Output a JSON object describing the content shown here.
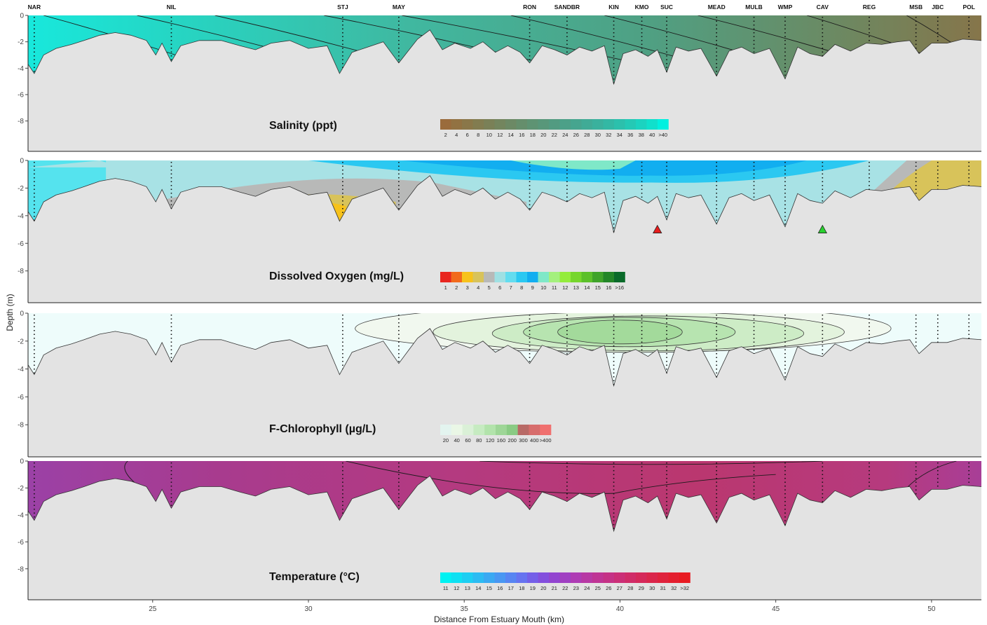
{
  "chart_data": {
    "type": "contour-section",
    "xlabel": "Distance From Estuary Mouth (km)",
    "ylabel": "Depth (m)",
    "xlim": [
      21,
      51.6
    ],
    "ylim": [
      -10,
      0
    ],
    "x_ticks": [
      "25",
      "30",
      "35",
      "40",
      "45",
      "50"
    ],
    "y_ticks": [
      "0",
      "-2",
      "-4",
      "-6",
      "-8"
    ],
    "stations": [
      {
        "name": "NAR",
        "km": 21.2
      },
      {
        "name": "NIL",
        "km": 25.6
      },
      {
        "name": "STJ",
        "km": 31.1
      },
      {
        "name": "MAY",
        "km": 32.9
      },
      {
        "name": "RON",
        "km": 37.1
      },
      {
        "name": "SANDBR",
        "km": 38.3
      },
      {
        "name": "KIN",
        "km": 39.8
      },
      {
        "name": "KMO",
        "km": 40.7
      },
      {
        "name": "SUC",
        "km": 41.5
      },
      {
        "name": "MEAD",
        "km": 43.1
      },
      {
        "name": "MULB",
        "km": 44.3
      },
      {
        "name": "WMP",
        "km": 45.3
      },
      {
        "name": "CAV",
        "km": 46.5
      },
      {
        "name": "REG",
        "km": 48.0
      },
      {
        "name": "MSB",
        "km": 49.5
      },
      {
        "name": "JBC",
        "km": 50.2
      },
      {
        "name": "POL",
        "km": 51.2
      }
    ],
    "bottom_profile": [
      [
        21.0,
        -3.7
      ],
      [
        21.2,
        -4.4
      ],
      [
        21.5,
        -3.0
      ],
      [
        21.9,
        -2.5
      ],
      [
        22.4,
        -2.2
      ],
      [
        22.8,
        -1.9
      ],
      [
        23.3,
        -1.5
      ],
      [
        23.8,
        -1.3
      ],
      [
        24.3,
        -1.5
      ],
      [
        24.8,
        -1.9
      ],
      [
        25.1,
        -3.0
      ],
      [
        25.3,
        -2.1
      ],
      [
        25.6,
        -3.5
      ],
      [
        25.9,
        -2.3
      ],
      [
        26.5,
        -1.9
      ],
      [
        27.2,
        -1.9
      ],
      [
        27.8,
        -2.3
      ],
      [
        28.3,
        -2.6
      ],
      [
        28.8,
        -2.1
      ],
      [
        29.4,
        -1.9
      ],
      [
        30.0,
        -2.5
      ],
      [
        30.6,
        -2.3
      ],
      [
        31.0,
        -4.4
      ],
      [
        31.4,
        -2.8
      ],
      [
        31.9,
        -2.4
      ],
      [
        32.4,
        -2.0
      ],
      [
        32.9,
        -3.6
      ],
      [
        33.2,
        -2.7
      ],
      [
        33.5,
        -1.8
      ],
      [
        33.9,
        -1.1
      ],
      [
        34.3,
        -2.6
      ],
      [
        34.7,
        -2.1
      ],
      [
        35.2,
        -2.5
      ],
      [
        35.6,
        -2.0
      ],
      [
        36.0,
        -2.8
      ],
      [
        36.4,
        -2.3
      ],
      [
        36.8,
        -2.8
      ],
      [
        37.1,
        -3.6
      ],
      [
        37.5,
        -2.3
      ],
      [
        37.9,
        -2.6
      ],
      [
        38.3,
        -3.0
      ],
      [
        38.7,
        -2.4
      ],
      [
        39.1,
        -2.7
      ],
      [
        39.5,
        -2.3
      ],
      [
        39.8,
        -5.2
      ],
      [
        40.1,
        -2.9
      ],
      [
        40.5,
        -2.6
      ],
      [
        40.9,
        -3.1
      ],
      [
        41.2,
        -2.6
      ],
      [
        41.5,
        -4.3
      ],
      [
        41.8,
        -2.4
      ],
      [
        42.2,
        -2.7
      ],
      [
        42.6,
        -2.5
      ],
      [
        43.1,
        -4.6
      ],
      [
        43.5,
        -2.7
      ],
      [
        43.9,
        -2.4
      ],
      [
        44.3,
        -2.9
      ],
      [
        44.8,
        -2.5
      ],
      [
        45.3,
        -4.8
      ],
      [
        45.7,
        -2.4
      ],
      [
        46.1,
        -2.9
      ],
      [
        46.5,
        -3.1
      ],
      [
        46.9,
        -2.2
      ],
      [
        47.4,
        -2.7
      ],
      [
        47.9,
        -2.1
      ],
      [
        48.4,
        -2.2
      ],
      [
        48.9,
        -2.0
      ],
      [
        49.3,
        -1.9
      ],
      [
        49.6,
        -2.9
      ],
      [
        50.0,
        -2.1
      ],
      [
        50.5,
        -2.1
      ],
      [
        51.0,
        -1.8
      ],
      [
        51.6,
        -1.9
      ]
    ],
    "panels": [
      {
        "title": "Salinity (ppt)",
        "variable": "salinity",
        "unit": "ppt",
        "legend_labels": [
          "2",
          "4",
          "6",
          "8",
          "10",
          "12",
          "14",
          "16",
          "18",
          "20",
          "22",
          "24",
          "26",
          "28",
          "30",
          "32",
          "34",
          "36",
          "38",
          "40",
          ">40"
        ],
        "legend_colors": [
          "#9a6b3c",
          "#927242",
          "#8a7749",
          "#827c50",
          "#7a8057",
          "#73855e",
          "#6c8965",
          "#658e6c",
          "#5e9373",
          "#58977a",
          "#529b81",
          "#4ca088",
          "#46a58f",
          "#40ab96",
          "#3ab19d",
          "#33b8a4",
          "#2cc0ac",
          "#24c9b5",
          "#1bd3c0",
          "#10e0cc",
          "#00f0e0"
        ],
        "mean_profile": [
          {
            "km": 21.0,
            "value": 40
          },
          {
            "km": 25.6,
            "value": 36
          },
          {
            "km": 31.1,
            "value": 30
          },
          {
            "km": 32.9,
            "value": 28
          },
          {
            "km": 37.1,
            "value": 24
          },
          {
            "km": 39.8,
            "value": 20
          },
          {
            "km": 43.1,
            "value": 14
          },
          {
            "km": 46.5,
            "value": 10
          },
          {
            "km": 49.5,
            "value": 6
          },
          {
            "km": 51.6,
            "value": 4
          }
        ]
      },
      {
        "title": "Dissolved Oxygen (mg/L)",
        "variable": "dissolved_oxygen",
        "unit": "mg/L",
        "legend_labels": [
          "1",
          "2",
          "3",
          "4",
          "5",
          "6",
          "7",
          "8",
          "9",
          "10",
          "11",
          "12",
          "13",
          "14",
          "15",
          "16",
          ">16"
        ],
        "legend_colors": [
          "#e8261f",
          "#f26a1c",
          "#f7c21b",
          "#d8c35a",
          "#b8b9b8",
          "#9fe0e3",
          "#63dcef",
          "#2bc8f1",
          "#12aef0",
          "#7fe8c8",
          "#a4f07d",
          "#94ec3c",
          "#76d62c",
          "#5cc02a",
          "#3fa32a",
          "#238628",
          "#0a6a2a"
        ],
        "markers": [
          {
            "km": 41.2,
            "depth": -5.0,
            "color": "#e81c1c"
          },
          {
            "km": 46.5,
            "depth": -5.0,
            "color": "#29d12f"
          }
        ]
      },
      {
        "title": "F-Chlorophyll (µg/L)",
        "variable": "chlorophyll",
        "unit": "µg/L",
        "legend_labels": [
          "20",
          "40",
          "60",
          "80",
          "120",
          "160",
          "200",
          "300",
          "400",
          ">400"
        ],
        "legend_colors": [
          "#e3f4ef",
          "#eaf7e6",
          "#daf0d7",
          "#c6ebc1",
          "#b2e3ab",
          "#9ed697",
          "#8acb84",
          "#b86a66",
          "#d76d6c",
          "#f0706f"
        ]
      },
      {
        "title": "Temperature (°C)",
        "variable": "temperature",
        "unit": "°C",
        "legend_labels": [
          "11",
          "12",
          "13",
          "14",
          "15",
          "16",
          "17",
          "18",
          "19",
          "20",
          "21",
          "22",
          "23",
          "24",
          "25",
          "26",
          "27",
          "28",
          "29",
          "30",
          "31",
          "32",
          ">32"
        ],
        "legend_colors": [
          "#00f2f2",
          "#0fe0f2",
          "#1dcef2",
          "#2cbbf2",
          "#3aa9f2",
          "#4997f2",
          "#5785f2",
          "#6673f0",
          "#745fe8",
          "#834fdd",
          "#9245d0",
          "#a040c2",
          "#ae3cb4",
          "#b739a4",
          "#bf3595",
          "#c53286",
          "#cb2f77",
          "#d02c68",
          "#d5295a",
          "#da264b",
          "#df233d",
          "#e41f2f",
          "#e81b22"
        ]
      }
    ]
  }
}
